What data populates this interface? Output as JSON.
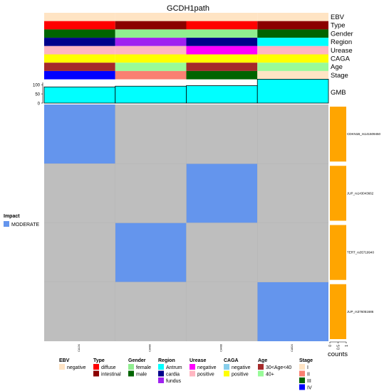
{
  "colors": {
    "moderate": "#6495ED",
    "empty": "#BEBEBE",
    "counts_bar": "#FFA500",
    "gmb_bar": "#00FFFF",
    "legend": {
      "EBV": [
        "#FFE4C4"
      ],
      "Type": [
        "#FF0000",
        "#8B0000"
      ],
      "Gender": [
        "#90EE90",
        "#006400"
      ],
      "Region": [
        "#00FFFF",
        "#00008B",
        "#A020F0"
      ],
      "Urease": [
        "#FF00FF",
        "#FFB6C1"
      ],
      "CAGA": [
        "#87CEEB",
        "#FFFF00"
      ],
      "Age": [
        "#A52A2A",
        "#98FB98"
      ],
      "Stage": [
        "#FFE4C4",
        "#FA8072",
        "#006400",
        "#0000FF"
      ]
    }
  },
  "chart_data": {
    "type": "heatmap",
    "title": "GCDH1path",
    "samples": [
      "CA134",
      "CA480",
      "CA488",
      "CA524"
    ],
    "annotation_tracks": [
      "EBV",
      "Type",
      "Gender",
      "Region",
      "Urease",
      "CAGA",
      "Age",
      "Stage"
    ],
    "annotations": {
      "EBV": [
        "negative",
        "negative",
        "negative",
        "negative"
      ],
      "Type": [
        "diffuse",
        "intestinal",
        "diffuse",
        "intestinal"
      ],
      "Gender": [
        "male",
        "female",
        "female",
        "male"
      ],
      "Region": [
        "cardia",
        "fundus",
        "cardia",
        "Antrum"
      ],
      "Urease": [
        "positive",
        "positive",
        "negative",
        "positive"
      ],
      "CAGA": [
        "positive",
        "positive",
        "positive",
        "positive"
      ],
      "Age": [
        "30<Age<40",
        "40+",
        "30<Age<40",
        "40+"
      ],
      "Stage": [
        "IV",
        "II",
        "III",
        "I"
      ]
    },
    "gmb_label": "GMB",
    "gmb_axis_ticks": [
      "100",
      "50",
      "0"
    ],
    "gmb_ylim": [
      0,
      120
    ],
    "gmb_values": [
      88,
      92,
      95,
      130
    ],
    "genes": [
      "CDKN1B_rs141509450",
      "JUP_rs143043662",
      "TERT_rs35719940",
      "JUP_rs376051686"
    ],
    "matrix": [
      [
        "MODERATE",
        "",
        "",
        ""
      ],
      [
        "",
        "",
        "MODERATE",
        ""
      ],
      [
        "",
        "MODERATE",
        "",
        ""
      ],
      [
        "",
        "",
        "",
        "MODERATE"
      ]
    ],
    "counts_label": "counts",
    "counts_axis_ticks": [
      "0",
      "0.5",
      "1"
    ],
    "counts_values": [
      1,
      1,
      1,
      1
    ],
    "counts_xlim": [
      0,
      1
    ],
    "impact_legend": {
      "title": "Impact",
      "items": [
        "MODERATE"
      ]
    },
    "legend": [
      {
        "title": "EBV",
        "items": [
          "negative"
        ]
      },
      {
        "title": "Type",
        "items": [
          "diffuse",
          "intestinal"
        ]
      },
      {
        "title": "Gender",
        "items": [
          "female",
          "male"
        ]
      },
      {
        "title": "Region",
        "items": [
          "Antrum",
          "cardia",
          "fundus"
        ]
      },
      {
        "title": "Urease",
        "items": [
          "negative",
          "positive"
        ]
      },
      {
        "title": "CAGA",
        "items": [
          "negative",
          "positive"
        ]
      },
      {
        "title": "Age",
        "items": [
          "30<Age<40",
          "40+"
        ]
      },
      {
        "title": "Stage",
        "items": [
          "I",
          "II",
          "III",
          "IV"
        ]
      }
    ]
  }
}
